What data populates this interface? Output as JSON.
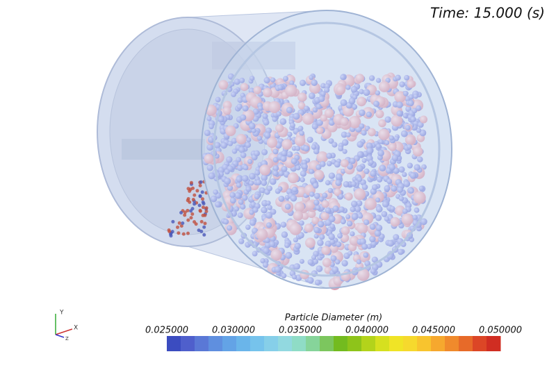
{
  "time_label": "Time: 15.000 (s)",
  "colorbar": {
    "title": "Particle Diameter (m)",
    "labels": [
      "0.025000",
      "0.030000",
      "0.035000",
      "0.040000",
      "0.045000",
      "0.050000"
    ],
    "colors": [
      "#3b4cc0",
      "#4f5fcc",
      "#5a78d6",
      "#5f8fdf",
      "#63a3e6",
      "#6ab5ea",
      "#76c3ec",
      "#86cfe9",
      "#92d9e0",
      "#8fdcc6",
      "#86d49a",
      "#7cc65e",
      "#73bb1f",
      "#8ec41a",
      "#b3d31b",
      "#d6e01f",
      "#f0e426",
      "#f6d92d",
      "#f8c42e",
      "#f6a82e",
      "#f08a2c",
      "#e76a29",
      "#dc4626",
      "#d02d22"
    ]
  },
  "axes": {
    "x": "X",
    "y": "Y",
    "z": "Z"
  }
}
